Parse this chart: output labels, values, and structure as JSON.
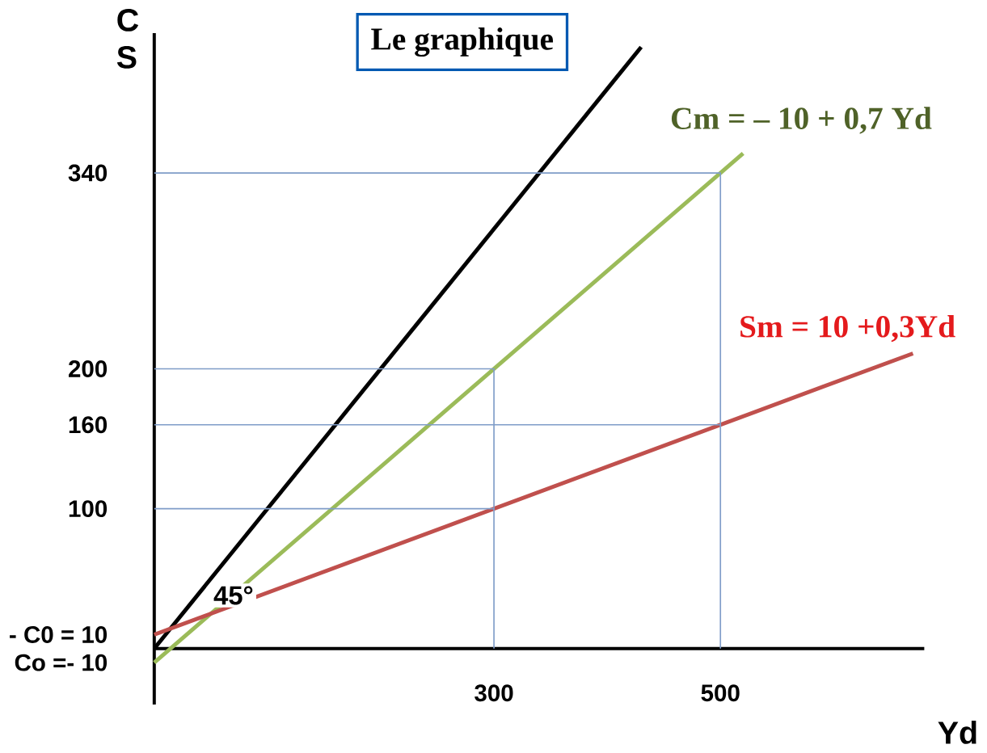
{
  "chart_data": {
    "type": "line",
    "title": "Le graphique",
    "xlabel": "Yd",
    "ylabel": "C S",
    "xlim": [
      0,
      680
    ],
    "ylim": [
      -40,
      440
    ],
    "xticks": [
      300,
      500
    ],
    "yticks": [
      340,
      200,
      160,
      100,
      {
        "value": 10,
        "label": "- C0 = 10"
      },
      {
        "value": -10,
        "label": "Co =- 10"
      }
    ],
    "grid": false,
    "marker": "none",
    "line_style": "solid",
    "series": [
      {
        "color": "#000000",
        "x": [
          0,
          430
        ],
        "values": [
          0,
          430
        ]
      },
      {
        "color": "#9bbb59",
        "x": [
          0,
          520
        ],
        "values": [
          -10,
          354
        ]
      },
      {
        "color": "#c0504d",
        "x": [
          0,
          670
        ],
        "values": [
          10,
          211
        ]
      },
      {
        "color": "#7f9cc8",
        "x": [
          0,
          500,
          500
        ],
        "values": [
          340,
          340,
          0
        ]
      },
      {
        "color": "#7f9cc8",
        "x": [
          0,
          300,
          300
        ],
        "values": [
          200,
          200,
          0
        ]
      },
      {
        "color": "#7f9cc8",
        "x": [
          0,
          500
        ],
        "values": [
          160,
          160
        ]
      },
      {
        "color": "#7f9cc8",
        "x": [
          0,
          300
        ],
        "values": [
          100,
          100
        ]
      }
    ],
    "annotations": [
      "Cm = – 10 + 0,7 Yd",
      "Sm = 10 +0,3Yd",
      {
        "text": "45°",
        "x": 70,
        "y": 38
      }
    ]
  }
}
